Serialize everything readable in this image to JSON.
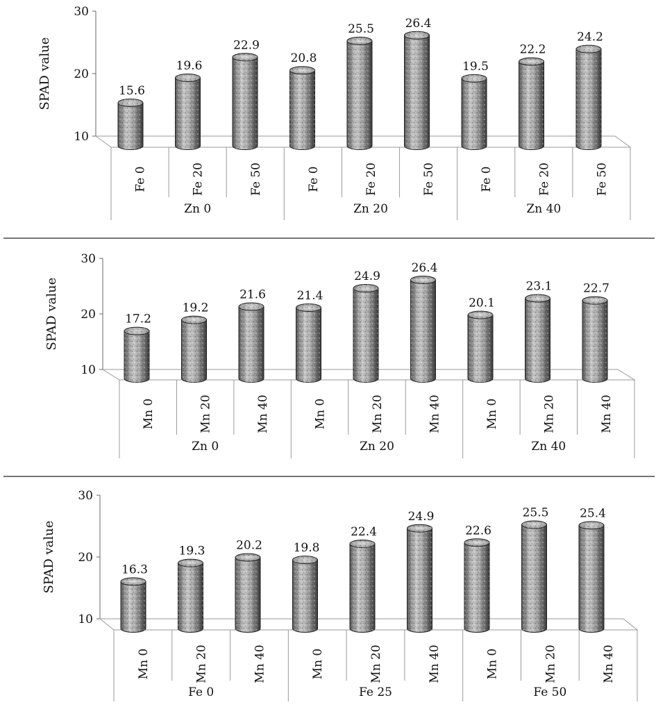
{
  "chart_data": [
    {
      "type": "bar",
      "ylabel": "SPAD value",
      "ylim": [
        10,
        30
      ],
      "yticks": [
        10,
        20,
        30
      ],
      "categories": [
        "Fe 0",
        "Fe 20",
        "Fe 50",
        "Fe 0",
        "Fe 20",
        "Fe 50",
        "Fe 0",
        "Fe 20",
        "Fe 50"
      ],
      "groups": [
        "Zn 0",
        "Zn 20",
        "Zn 40"
      ],
      "values": [
        15.6,
        19.6,
        22.9,
        20.8,
        25.5,
        26.4,
        19.5,
        22.2,
        24.2
      ],
      "value_labels": [
        "15.6",
        "19.6",
        "22.9",
        "20.8",
        "25.5",
        "26.4",
        "19.5",
        "22.2",
        "24.2"
      ]
    },
    {
      "type": "bar",
      "ylabel": "SPAD value",
      "ylim": [
        10,
        30
      ],
      "yticks": [
        10,
        20,
        30
      ],
      "categories": [
        "Mn 0",
        "Mn 20",
        "Mn 40",
        "Mn 0",
        "Mn 20",
        "Mn 40",
        "Mn 0",
        "Mn 20",
        "Mn 40"
      ],
      "groups": [
        "Zn 0",
        "Zn 20",
        "Zn 40"
      ],
      "values": [
        17.2,
        19.2,
        21.6,
        21.4,
        24.9,
        26.4,
        20.1,
        23.1,
        22.7
      ],
      "value_labels": [
        "17.2",
        "19.2",
        "21.6",
        "21.4",
        "24.9",
        "26.4",
        "20.1",
        "23.1",
        "22.7"
      ]
    },
    {
      "type": "bar",
      "ylabel": "SPAD value",
      "ylim": [
        10,
        30
      ],
      "yticks": [
        10,
        20,
        30
      ],
      "categories": [
        "Mn 0",
        "Mn 20",
        "Mn 40",
        "Mn 0",
        "Mn 20",
        "Mn 40",
        "Mn 0",
        "Mn 20",
        "Mn 40"
      ],
      "groups": [
        "Fe 0",
        "Fe 25",
        "Fe 50"
      ],
      "values": [
        16.3,
        19.3,
        20.2,
        19.8,
        22.4,
        24.9,
        22.6,
        25.5,
        25.4
      ],
      "value_labels": [
        "16.3",
        "19.3",
        "20.2",
        "19.8",
        "22.4",
        "24.9",
        "22.6",
        "25.5",
        "25.4"
      ]
    }
  ]
}
